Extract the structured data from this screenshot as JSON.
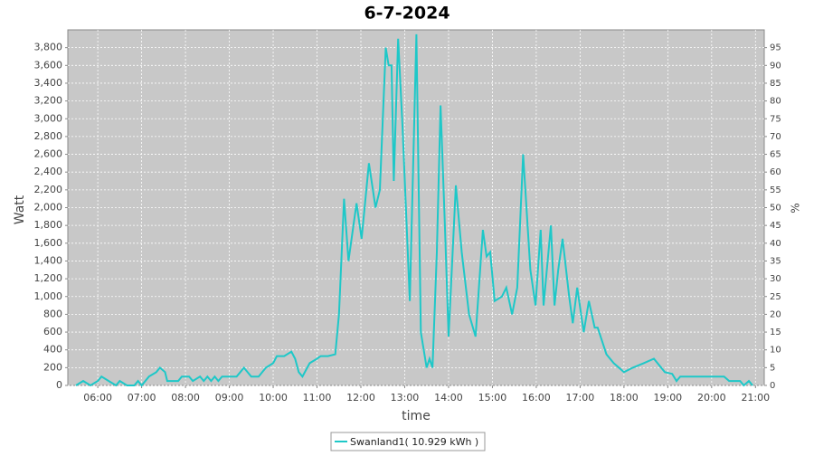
{
  "chart_data": {
    "type": "line",
    "title": "6-7-2024",
    "x_label": "time",
    "y_label": "Watt",
    "y2_label": "%",
    "xlim": [
      "05:19",
      "21:12"
    ],
    "xticks": [
      "06:00",
      "07:00",
      "08:00",
      "09:00",
      "10:00",
      "11:00",
      "12:00",
      "13:00",
      "14:00",
      "15:00",
      "16:00",
      "17:00",
      "18:00",
      "19:00",
      "20:00",
      "21:00"
    ],
    "ylim": [
      0,
      4000
    ],
    "yticks": [
      0,
      200,
      400,
      600,
      800,
      {
        "value": 1000,
        "label": "1,000"
      },
      {
        "value": 1200,
        "label": "1,200"
      },
      {
        "value": 1400,
        "label": "1,400"
      },
      {
        "value": 1600,
        "label": "1,600"
      },
      {
        "value": 1800,
        "label": "1,800"
      },
      {
        "value": 2000,
        "label": "2,000"
      },
      {
        "value": 2200,
        "label": "2,200"
      },
      {
        "value": 2400,
        "label": "2,400"
      },
      {
        "value": 2600,
        "label": "2,600"
      },
      {
        "value": 2800,
        "label": "2,800"
      },
      {
        "value": 3000,
        "label": "3,000"
      },
      {
        "value": 3200,
        "label": "3,200"
      },
      {
        "value": 3400,
        "label": "3,400"
      },
      {
        "value": 3600,
        "label": "3,600"
      },
      {
        "value": 3800,
        "label": "3,800"
      }
    ],
    "y2lim": [
      0,
      100
    ],
    "y2ticks": [
      0,
      5,
      10,
      15,
      20,
      25,
      30,
      35,
      40,
      45,
      50,
      55,
      60,
      65,
      70,
      75,
      80,
      85,
      90,
      95
    ],
    "grid": true,
    "x": [
      "05:30",
      "05:40",
      "05:50",
      "06:00",
      "06:05",
      "06:15",
      "06:25",
      "06:30",
      "06:40",
      "06:50",
      "06:55",
      "07:00",
      "07:10",
      "07:20",
      "07:25",
      "07:32",
      "07:35",
      "07:50",
      "07:55",
      "08:05",
      "08:10",
      "08:20",
      "08:25",
      "08:30",
      "08:35",
      "08:40",
      "08:45",
      "08:50",
      "09:00",
      "09:10",
      "09:15",
      "09:20",
      "09:30",
      "09:40",
      "09:50",
      "10:00",
      "10:05",
      "10:15",
      "10:25",
      "10:30",
      "10:35",
      "10:40",
      "10:50",
      "11:00",
      "11:05",
      "11:15",
      "11:25",
      "11:30",
      "11:37",
      "11:43",
      "11:54",
      "12:01",
      "12:11",
      "12:20",
      "12:26",
      "12:34",
      "12:38",
      "12:42",
      "12:45",
      "12:51",
      "12:57",
      "13:07",
      "13:16",
      "13:22",
      "13:30",
      "13:34",
      "13:38",
      "13:44",
      "13:49",
      "13:55",
      "14:00",
      "14:10",
      "14:18",
      "14:28",
      "14:37",
      "14:47",
      "14:52",
      "14:57",
      "15:03",
      "15:13",
      "15:19",
      "15:27",
      "15:34",
      "15:42",
      "15:52",
      "15:59",
      "16:06",
      "16:10",
      "16:20",
      "16:25",
      "16:30",
      "16:36",
      "16:45",
      "16:50",
      "16:56",
      "17:05",
      "17:12",
      "17:20",
      "17:24",
      "17:36",
      "17:46",
      "18:00",
      "18:12",
      "18:27",
      "18:41",
      "18:56",
      "19:06",
      "19:12",
      "19:17",
      "19:27",
      "20:17",
      "20:24",
      "20:39",
      "20:44",
      "20:51",
      "20:56"
    ],
    "series": [
      {
        "name": "Swanland1( 10.929 kWh )",
        "color": "#1ec8c8",
        "values": [
          0,
          50,
          0,
          50,
          100,
          50,
          0,
          50,
          0,
          0,
          50,
          0,
          100,
          150,
          200,
          150,
          50,
          50,
          100,
          100,
          50,
          100,
          50,
          100,
          50,
          100,
          50,
          100,
          100,
          100,
          150,
          200,
          100,
          100,
          200,
          250,
          330,
          330,
          380,
          300,
          150,
          100,
          250,
          300,
          330,
          330,
          350,
          800,
          2100,
          1400,
          2050,
          1650,
          2500,
          2000,
          2200,
          3800,
          3600,
          3600,
          2300,
          3900,
          2900,
          950,
          3950,
          600,
          200,
          300,
          200,
          1500,
          3150,
          1800,
          550,
          2250,
          1500,
          800,
          550,
          1750,
          1450,
          1500,
          950,
          1000,
          1100,
          800,
          1100,
          2600,
          1300,
          900,
          1750,
          900,
          1800,
          900,
          1300,
          1650,
          1000,
          700,
          1100,
          600,
          950,
          650,
          650,
          350,
          250,
          150,
          200,
          250,
          300,
          150,
          130,
          50,
          100,
          100,
          100,
          50,
          50,
          0,
          50,
          0
        ]
      }
    ]
  }
}
